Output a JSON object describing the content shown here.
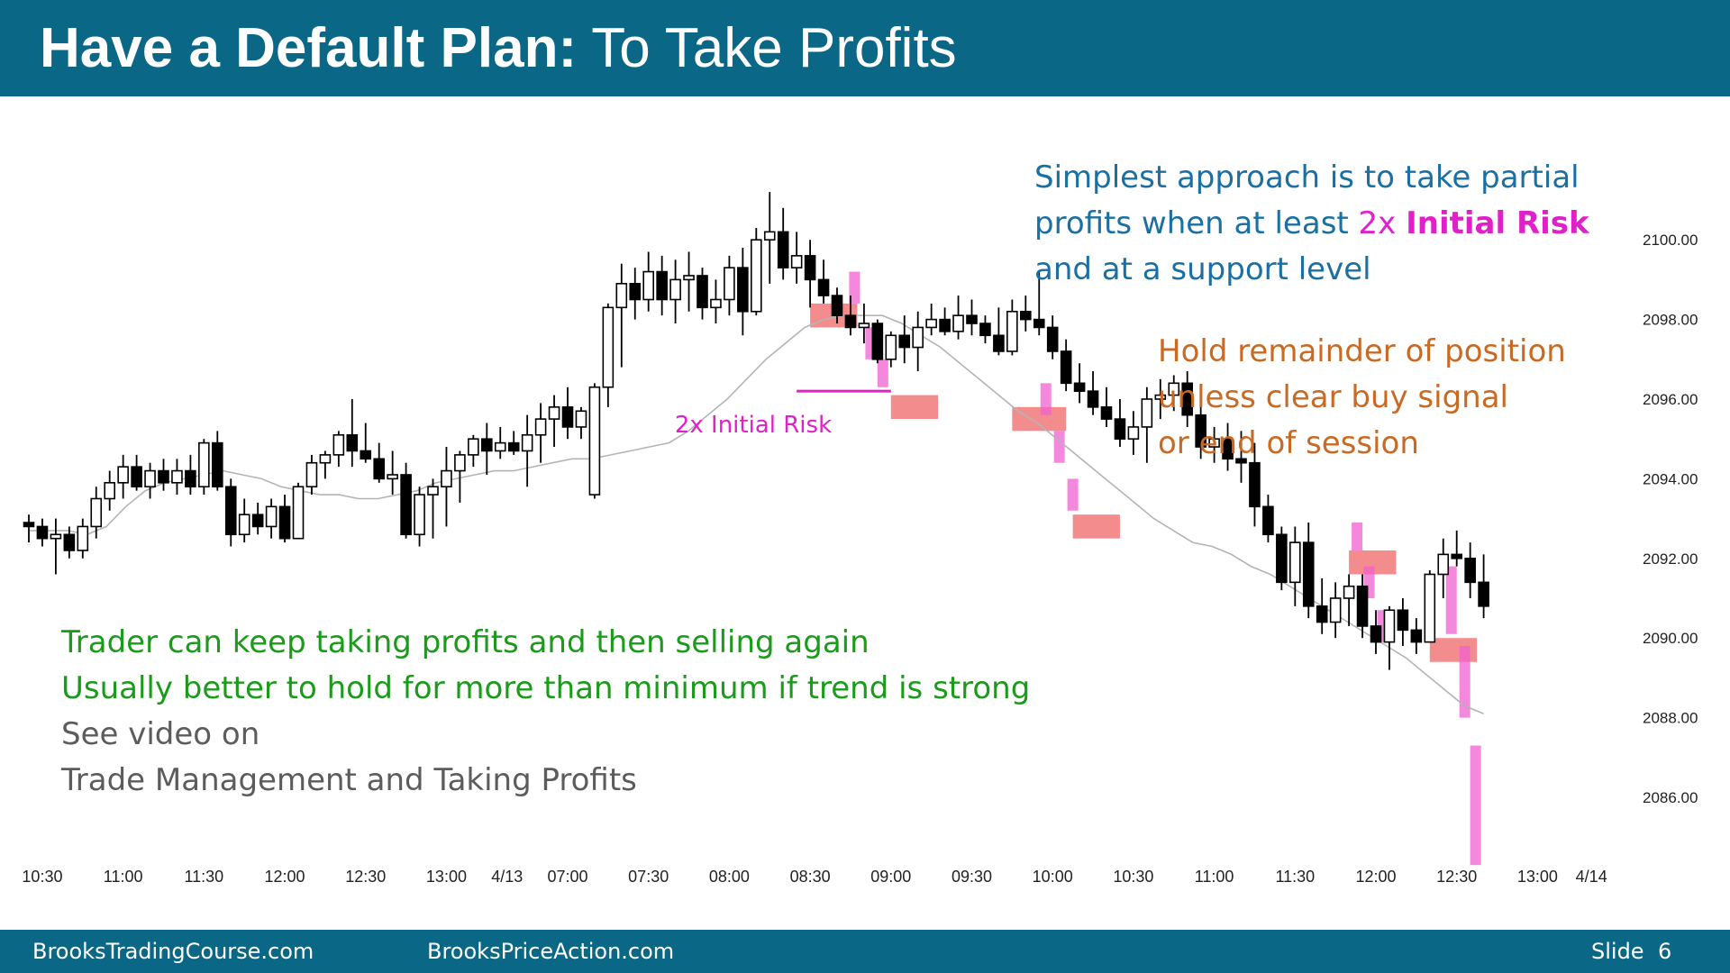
{
  "header": {
    "title_bold": "Have a Default Plan:",
    "title_rest": " To Take Profits"
  },
  "colors": {
    "header_bg": "#0a6786",
    "note_blue": "#1a6fa3",
    "note_magenta": "#e020c8",
    "note_orange": "#c96a24",
    "note_green": "#1a9b1a",
    "note_gray": "#5c5c5c",
    "profit_zone": "#f07070",
    "risk_bar": "#f060d0",
    "ema_line": "#b4b4b4"
  },
  "notes": {
    "partial_line1": "Simplest approach is to take partial",
    "partial_line2_a": "profits when at least ",
    "partial_line2_b": "2x ",
    "partial_line2_c": "Initial Risk",
    "partial_line3": "and at a support level",
    "hold_line1": "Hold remainder of position",
    "hold_line2": "unless clear buy signal",
    "hold_line3": "or end of session",
    "green_line1": "Trader can keep taking profits and then selling again",
    "green_line2": "Usually better to hold for more than minimum if trend is strong",
    "gray_line1": "See video on",
    "gray_line2": "Trade Management and Taking Profits"
  },
  "footer": {
    "site1": "BrooksTradingCourse.com",
    "site2": "BrooksPriceAction.com",
    "slide_label": "Slide",
    "slide_number": "6"
  },
  "chart_data": {
    "type": "candlestick",
    "title": "",
    "ylim": [
      2084.0,
      2101.5
    ],
    "y_ticks": [
      2086,
      2088,
      2090,
      2092,
      2094,
      2096,
      2098,
      2100
    ],
    "y_tick_labels": [
      "2086.00",
      "2088.00",
      "2090.00",
      "2092.00",
      "2094.00",
      "2096.00",
      "2098.00",
      "2100.00"
    ],
    "x_tick_labels": [
      {
        "label": "10:30",
        "bar": 1
      },
      {
        "label": "11:00",
        "bar": 7
      },
      {
        "label": "11:30",
        "bar": 13
      },
      {
        "label": "12:00",
        "bar": 19
      },
      {
        "label": "12:30",
        "bar": 25
      },
      {
        "label": "13:00",
        "bar": 31
      },
      {
        "label": "4/13",
        "bar": 35.5
      },
      {
        "label": "07:00",
        "bar": 40
      },
      {
        "label": "07:30",
        "bar": 46
      },
      {
        "label": "08:00",
        "bar": 52
      },
      {
        "label": "08:30",
        "bar": 58
      },
      {
        "label": "09:00",
        "bar": 64
      },
      {
        "label": "09:30",
        "bar": 70
      },
      {
        "label": "10:00",
        "bar": 76
      },
      {
        "label": "10:30",
        "bar": 82
      },
      {
        "label": "11:00",
        "bar": 88
      },
      {
        "label": "11:30",
        "bar": 94
      },
      {
        "label": "12:00",
        "bar": 100
      },
      {
        "label": "12:30",
        "bar": 106
      },
      {
        "label": "13:00",
        "bar": 112
      },
      {
        "label": "4/14",
        "bar": 116
      }
    ],
    "ohlc": [
      [
        2092.9,
        2093.1,
        2092.4,
        2092.8
      ],
      [
        2092.8,
        2093.0,
        2092.3,
        2092.5
      ],
      [
        2092.5,
        2093.0,
        2091.6,
        2092.6
      ],
      [
        2092.6,
        2092.8,
        2092.0,
        2092.2
      ],
      [
        2092.2,
        2093.0,
        2092.0,
        2092.8
      ],
      [
        2092.8,
        2093.8,
        2092.5,
        2093.5
      ],
      [
        2093.5,
        2094.2,
        2093.2,
        2093.9
      ],
      [
        2093.9,
        2094.6,
        2093.5,
        2094.3
      ],
      [
        2094.3,
        2094.6,
        2093.7,
        2093.8
      ],
      [
        2093.8,
        2094.4,
        2093.5,
        2094.2
      ],
      [
        2094.2,
        2094.5,
        2093.7,
        2093.9
      ],
      [
        2093.9,
        2094.5,
        2093.6,
        2094.2
      ],
      [
        2094.2,
        2094.6,
        2093.6,
        2093.8
      ],
      [
        2093.8,
        2095.0,
        2093.6,
        2094.9
      ],
      [
        2094.9,
        2095.2,
        2093.7,
        2093.8
      ],
      [
        2093.8,
        2094.0,
        2092.3,
        2092.6
      ],
      [
        2092.6,
        2093.5,
        2092.4,
        2093.1
      ],
      [
        2093.1,
        2093.4,
        2092.6,
        2092.8
      ],
      [
        2092.8,
        2093.5,
        2092.5,
        2093.3
      ],
      [
        2093.3,
        2093.6,
        2092.4,
        2092.5
      ],
      [
        2092.5,
        2093.9,
        2092.5,
        2093.8
      ],
      [
        2093.8,
        2094.6,
        2093.6,
        2094.4
      ],
      [
        2094.4,
        2094.7,
        2094.0,
        2094.6
      ],
      [
        2094.6,
        2095.2,
        2094.3,
        2095.1
      ],
      [
        2095.1,
        2096.0,
        2094.3,
        2094.7
      ],
      [
        2094.7,
        2095.4,
        2094.4,
        2094.5
      ],
      [
        2094.5,
        2094.9,
        2093.9,
        2094.0
      ],
      [
        2094.0,
        2094.7,
        2093.6,
        2094.1
      ],
      [
        2094.1,
        2094.4,
        2092.5,
        2092.6
      ],
      [
        2092.6,
        2093.8,
        2092.3,
        2093.6
      ],
      [
        2093.6,
        2094.0,
        2092.5,
        2093.8
      ],
      [
        2093.8,
        2094.8,
        2092.8,
        2094.2
      ],
      [
        2094.2,
        2094.7,
        2093.4,
        2094.6
      ],
      [
        2094.6,
        2095.1,
        2094.3,
        2095.0
      ],
      [
        2095.0,
        2095.4,
        2094.1,
        2094.7
      ],
      [
        2094.7,
        2095.3,
        2094.5,
        2094.9
      ],
      [
        2094.9,
        2095.2,
        2094.6,
        2094.7
      ],
      [
        2094.7,
        2095.6,
        2093.8,
        2095.1
      ],
      [
        2095.1,
        2095.9,
        2094.4,
        2095.5
      ],
      [
        2095.5,
        2096.1,
        2094.8,
        2095.8
      ],
      [
        2095.8,
        2096.3,
        2095.0,
        2095.3
      ],
      [
        2095.3,
        2095.8,
        2095.0,
        2095.7
      ],
      [
        2093.6,
        2096.4,
        2093.5,
        2096.3
      ],
      [
        2096.3,
        2098.4,
        2095.8,
        2098.3
      ],
      [
        2098.3,
        2099.4,
        2096.8,
        2098.9
      ],
      [
        2098.9,
        2099.3,
        2098.0,
        2098.5
      ],
      [
        2098.5,
        2099.7,
        2098.2,
        2099.2
      ],
      [
        2099.2,
        2099.6,
        2098.1,
        2098.5
      ],
      [
        2098.5,
        2099.5,
        2097.9,
        2099.0
      ],
      [
        2099.0,
        2099.7,
        2098.2,
        2099.1
      ],
      [
        2099.1,
        2099.3,
        2098.0,
        2098.3
      ],
      [
        2098.3,
        2099.0,
        2097.9,
        2098.5
      ],
      [
        2098.5,
        2099.6,
        2098.1,
        2099.3
      ],
      [
        2099.3,
        2099.8,
        2097.6,
        2098.2
      ],
      [
        2098.2,
        2100.3,
        2098.1,
        2100.0
      ],
      [
        2100.0,
        2101.2,
        2098.9,
        2100.2
      ],
      [
        2100.2,
        2100.8,
        2099.0,
        2099.3
      ],
      [
        2099.3,
        2100.2,
        2098.9,
        2099.6
      ],
      [
        2099.6,
        2100.0,
        2098.3,
        2099.0
      ],
      [
        2099.0,
        2099.5,
        2098.4,
        2098.6
      ],
      [
        2098.6,
        2098.8,
        2097.9,
        2098.1
      ],
      [
        2098.1,
        2098.6,
        2097.6,
        2097.8
      ],
      [
        2097.8,
        2098.4,
        2097.4,
        2097.9
      ],
      [
        2097.9,
        2098.0,
        2096.9,
        2097.0
      ],
      [
        2097.0,
        2097.7,
        2096.8,
        2097.6
      ],
      [
        2097.6,
        2098.1,
        2096.9,
        2097.3
      ],
      [
        2097.3,
        2098.2,
        2096.7,
        2097.8
      ],
      [
        2097.8,
        2098.4,
        2097.6,
        2098.0
      ],
      [
        2098.0,
        2098.3,
        2097.6,
        2097.7
      ],
      [
        2097.7,
        2098.6,
        2097.5,
        2098.1
      ],
      [
        2098.1,
        2098.5,
        2097.6,
        2097.9
      ],
      [
        2097.9,
        2098.1,
        2097.4,
        2097.6
      ],
      [
        2097.6,
        2098.3,
        2097.1,
        2097.2
      ],
      [
        2097.2,
        2098.5,
        2097.1,
        2098.2
      ],
      [
        2098.2,
        2098.6,
        2097.7,
        2098.0
      ],
      [
        2098.0,
        2099.2,
        2097.6,
        2097.8
      ],
      [
        2097.8,
        2098.1,
        2097.0,
        2097.2
      ],
      [
        2097.2,
        2097.5,
        2096.2,
        2096.4
      ],
      [
        2096.4,
        2096.9,
        2095.9,
        2096.2
      ],
      [
        2096.2,
        2096.7,
        2095.6,
        2095.8
      ],
      [
        2095.8,
        2096.3,
        2095.3,
        2095.5
      ],
      [
        2095.5,
        2096.0,
        2094.8,
        2095.0
      ],
      [
        2095.0,
        2095.7,
        2094.6,
        2095.3
      ],
      [
        2095.3,
        2096.3,
        2094.4,
        2096.0
      ],
      [
        2096.0,
        2096.5,
        2095.5,
        2096.1
      ],
      [
        2096.1,
        2096.6,
        2095.7,
        2096.4
      ],
      [
        2096.4,
        2096.7,
        2095.3,
        2095.6
      ],
      [
        2095.6,
        2095.9,
        2094.5,
        2094.8
      ],
      [
        2094.8,
        2095.3,
        2094.4,
        2095.0
      ],
      [
        2095.0,
        2095.4,
        2094.2,
        2094.5
      ],
      [
        2094.5,
        2095.2,
        2093.9,
        2094.4
      ],
      [
        2094.4,
        2094.9,
        2092.8,
        2093.3
      ],
      [
        2093.3,
        2093.6,
        2092.4,
        2092.6
      ],
      [
        2092.6,
        2092.8,
        2091.2,
        2091.4
      ],
      [
        2091.4,
        2092.8,
        2090.8,
        2092.4
      ],
      [
        2092.4,
        2092.9,
        2090.5,
        2090.8
      ],
      [
        2090.8,
        2091.5,
        2090.1,
        2090.4
      ],
      [
        2090.4,
        2091.4,
        2090.0,
        2091.0
      ],
      [
        2091.0,
        2091.6,
        2090.3,
        2091.3
      ],
      [
        2091.3,
        2091.6,
        2090.0,
        2090.3
      ],
      [
        2090.3,
        2090.7,
        2089.6,
        2089.9
      ],
      [
        2089.9,
        2090.8,
        2089.2,
        2090.7
      ],
      [
        2090.7,
        2091.0,
        2089.8,
        2090.2
      ],
      [
        2090.2,
        2090.5,
        2089.6,
        2089.9
      ],
      [
        2089.9,
        2091.7,
        2089.9,
        2091.6
      ],
      [
        2091.6,
        2092.5,
        2091.0,
        2092.1
      ],
      [
        2092.1,
        2092.7,
        2091.8,
        2092.0
      ],
      [
        2092.0,
        2092.4,
        2091.0,
        2091.4
      ],
      [
        2091.4,
        2092.1,
        2090.5,
        2090.8
      ]
    ],
    "ema_values": [
      2092.7,
      2092.7,
      2092.7,
      2092.6,
      2092.8,
      2093.3,
      2093.7,
      2093.9,
      2094.0,
      2094.1,
      2094.2,
      2094.1,
      2094.0,
      2093.8,
      2093.7,
      2093.6,
      2093.6,
      2093.5,
      2093.5,
      2093.6,
      2093.7,
      2093.9,
      2094.0,
      2094.1,
      2094.2,
      2094.2,
      2094.3,
      2094.4,
      2094.5,
      2094.5,
      2094.6,
      2094.7,
      2094.8,
      2094.9,
      2095.2,
      2095.6,
      2096.0,
      2096.5,
      2097.0,
      2097.4,
      2097.8,
      2098.0,
      2098.1,
      2098.1,
      2098.1,
      2097.9,
      2097.6,
      2097.3,
      2096.9,
      2096.5,
      2096.1,
      2095.7,
      2095.4,
      2095.0,
      2094.6,
      2094.2,
      2093.8,
      2093.4,
      2093.0,
      2092.7,
      2092.4,
      2092.3,
      2092.1,
      2091.8,
      2091.6,
      2091.3,
      2091.0,
      2090.7,
      2090.4,
      2090.1,
      2089.8,
      2089.5,
      2089.1,
      2088.7,
      2088.3,
      2088.1
    ],
    "profit_zones": [
      {
        "bar_start": 58,
        "bar_end": 61.5,
        "low": 2097.8,
        "high": 2098.4
      },
      {
        "bar_start": 64,
        "bar_end": 67.5,
        "low": 2095.5,
        "high": 2096.1
      },
      {
        "bar_start": 73,
        "bar_end": 77,
        "low": 2095.2,
        "high": 2095.8
      },
      {
        "bar_start": 77.5,
        "bar_end": 81,
        "low": 2092.5,
        "high": 2093.1
      },
      {
        "bar_start": 98,
        "bar_end": 101.5,
        "low": 2091.6,
        "high": 2092.2
      },
      {
        "bar_start": 104,
        "bar_end": 107.5,
        "low": 2089.4,
        "high": 2090.0
      }
    ],
    "risk_bars": [
      {
        "bar": 61.3,
        "low": 2098.4,
        "high": 2099.2
      },
      {
        "bar": 62.5,
        "low": 2097.0,
        "high": 2097.8
      },
      {
        "bar": 63.4,
        "low": 2096.3,
        "high": 2097.0
      },
      {
        "bar": 75.5,
        "low": 2095.6,
        "high": 2096.4
      },
      {
        "bar": 76.5,
        "low": 2094.4,
        "high": 2095.2
      },
      {
        "bar": 77.5,
        "low": 2093.2,
        "high": 2094.0
      },
      {
        "bar": 98.6,
        "low": 2092.2,
        "high": 2092.9
      },
      {
        "bar": 99.5,
        "low": 2091.0,
        "high": 2091.8
      },
      {
        "bar": 100.5,
        "low": 2089.9,
        "high": 2090.7
      },
      {
        "bar": 105.6,
        "low": 2090.1,
        "high": 2091.8
      },
      {
        "bar": 106.6,
        "low": 2088.0,
        "high": 2089.8
      },
      {
        "bar": 107.4,
        "low": 2084.3,
        "high": 2087.3
      }
    ],
    "annotation": {
      "text": "2x Initial Risk",
      "price": 2096.2,
      "bar_start": 57,
      "bar_end": 64
    }
  }
}
